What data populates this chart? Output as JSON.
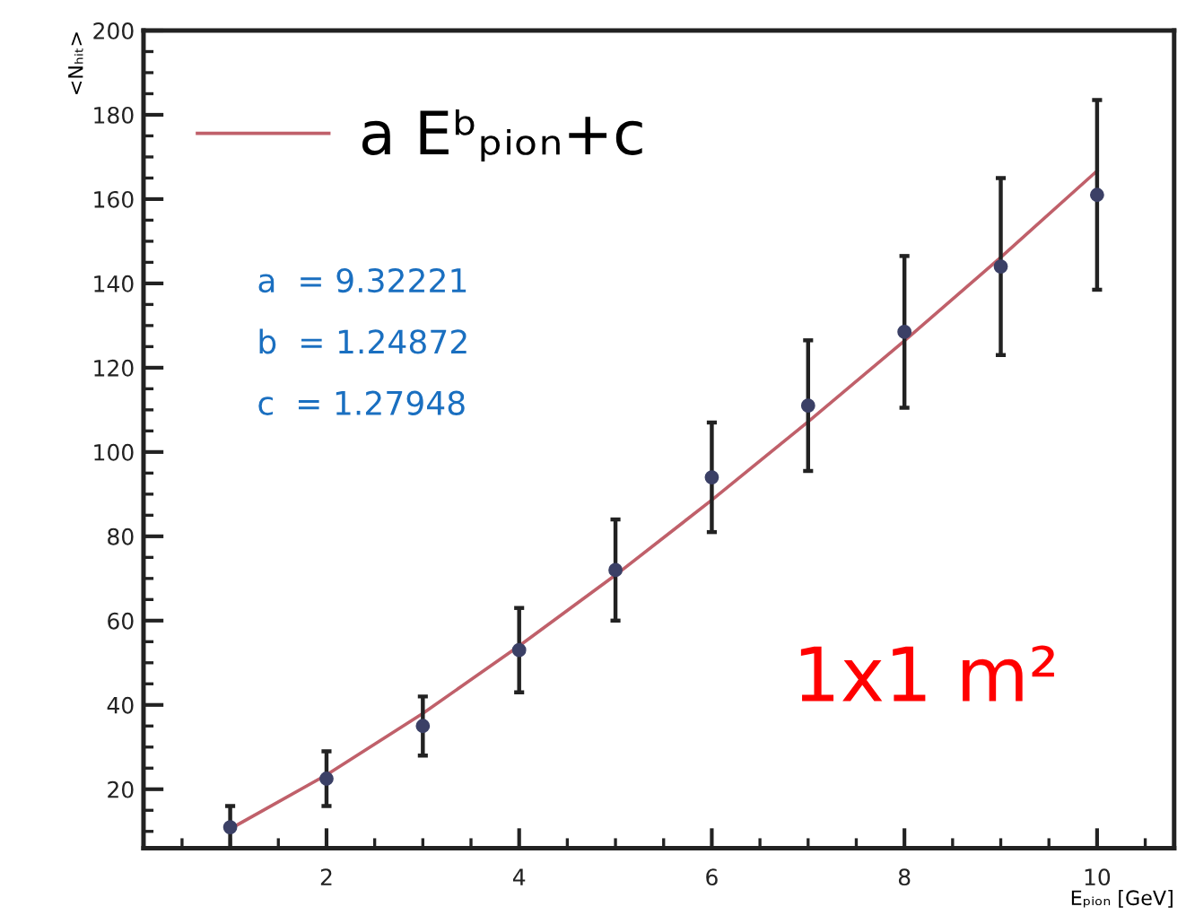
{
  "chart_data": {
    "type": "scatter",
    "xlabel": "Eₚᵢₒₙ [GeV]",
    "ylabel": "<Nₕᵢₜ>",
    "series": [
      {
        "color": "#3b4066",
        "marker": "circle",
        "x": [
          1,
          2,
          3,
          4,
          5,
          6,
          7,
          8,
          9,
          10
        ],
        "values": [
          11,
          22.5,
          35,
          53,
          72,
          94,
          111,
          128.5,
          144,
          161
        ],
        "errors": [
          5,
          6.5,
          7,
          10,
          12,
          13,
          15.5,
          18,
          21,
          22.5
        ]
      },
      {
        "type": "line",
        "name": "a Eᵇₚᵢₒₙ+c",
        "color": "#c0606a",
        "marker": "none",
        "line_style": "solid",
        "x": [
          1,
          2,
          3,
          4,
          5,
          6,
          7,
          8,
          9,
          10
        ],
        "values": [
          10.6,
          23.4,
          38.0,
          54.0,
          70.8,
          88.6,
          107.2,
          126.4,
          146.2,
          166.7
        ]
      }
    ],
    "xlim": [
      0.1,
      10.8
    ],
    "ylim": [
      6,
      200
    ],
    "xticks": [
      2,
      4,
      6,
      8,
      10
    ],
    "yticks": [
      20,
      40,
      60,
      80,
      100,
      120,
      140,
      160,
      180,
      200
    ],
    "grid": false,
    "legend": "top left",
    "annotations": [
      "a  = 9.32221",
      "b  = 1.24872",
      "c  = 1.27948",
      "1x1 m²"
    ]
  }
}
